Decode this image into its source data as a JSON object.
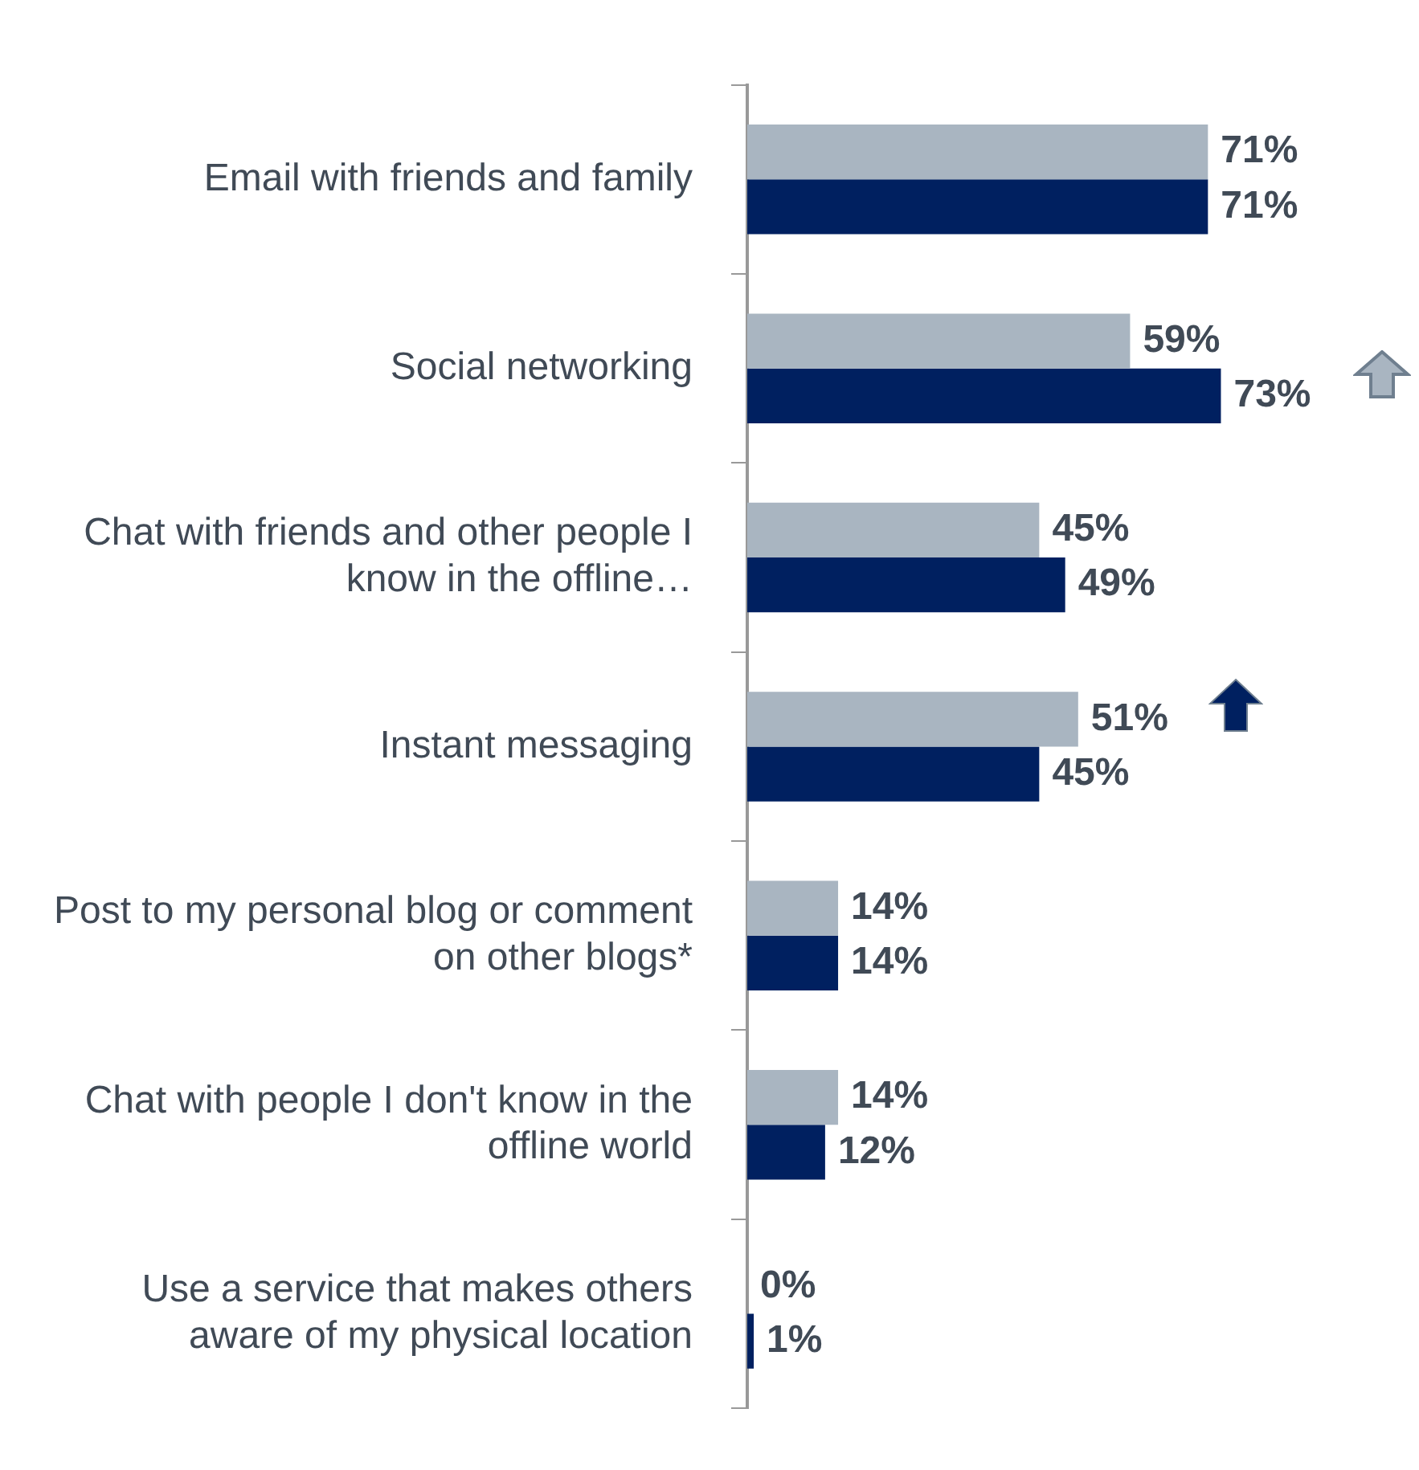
{
  "chart_data": {
    "type": "bar",
    "orientation": "horizontal",
    "legend": false,
    "categories": [
      "Email with friends and family",
      "Social networking",
      "Chat with friends and other people I know in the offline…",
      "Instant messaging",
      "Post to my personal blog or comment on other blogs*",
      "Chat with people I don't know in the offline world",
      "Use a service that makes others aware of my physical location"
    ],
    "series": [
      {
        "color": "#a9b5c1",
        "values": [
          71,
          59,
          45,
          51,
          14,
          14,
          0
        ],
        "value_labels": [
          "71%",
          "59%",
          "45%",
          "51%",
          "14%",
          "14%",
          "0%"
        ]
      },
      {
        "color": "#002060",
        "values": [
          71,
          73,
          49,
          45,
          14,
          12,
          1
        ],
        "value_labels": [
          "71%",
          "73%",
          "49%",
          "45%",
          "14%",
          "12%",
          "1%"
        ]
      }
    ]
  }
}
